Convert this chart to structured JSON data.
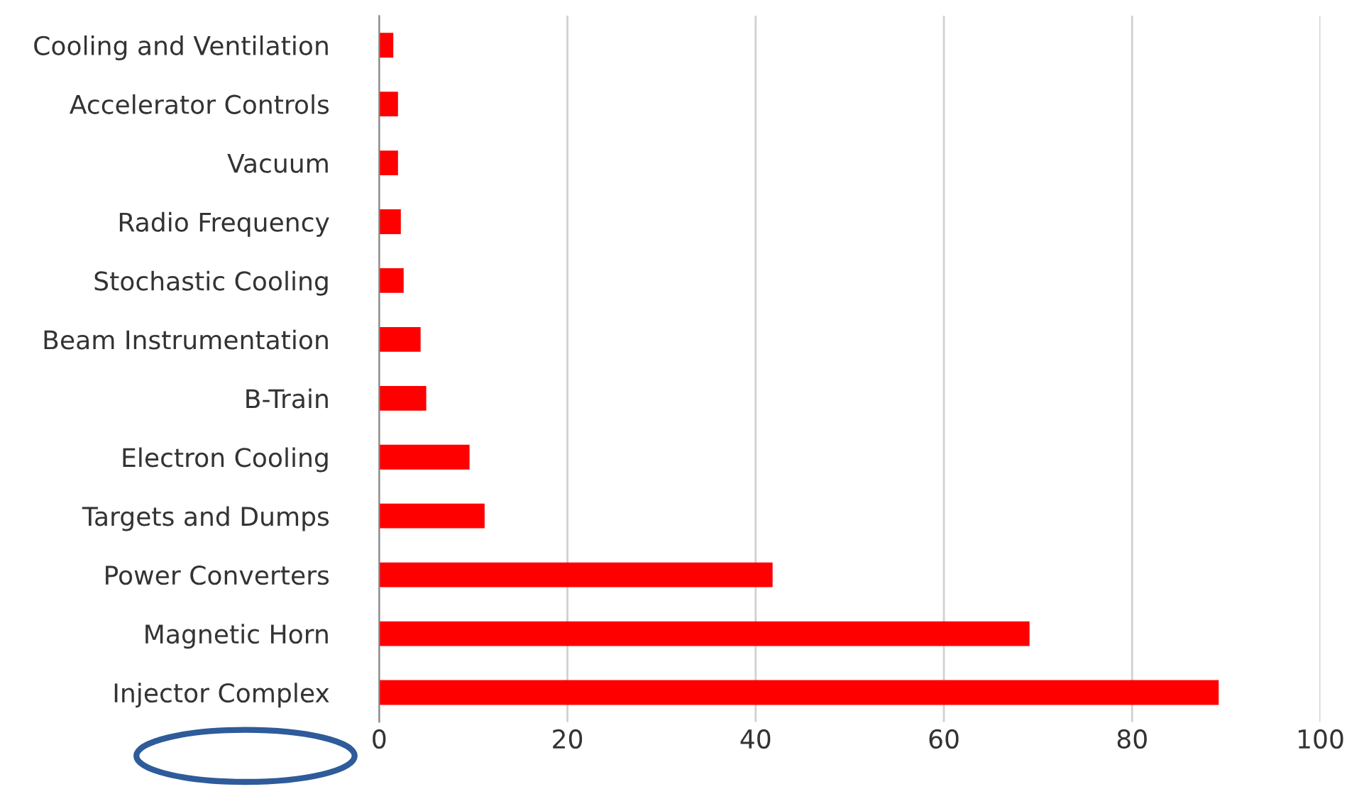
{
  "chart_data": {
    "type": "bar",
    "orientation": "horizontal",
    "categories": [
      "Cooling and Ventilation",
      "Accelerator Controls",
      "Vacuum",
      "Radio Frequency",
      "Stochastic Cooling",
      "Beam Instrumentation",
      "B-Train",
      "Electron Cooling",
      "Targets and Dumps",
      "Power Converters",
      "Magnetic Horn",
      "Injector Complex"
    ],
    "values": [
      1.5,
      2.0,
      2.0,
      2.3,
      2.6,
      4.4,
      5.0,
      9.6,
      11.2,
      41.8,
      69.1,
      89.2
    ],
    "color": "#ff0000",
    "xlim": [
      0,
      100
    ],
    "xticks": [
      0,
      20,
      40,
      60,
      80,
      100
    ],
    "grid": "x"
  }
}
